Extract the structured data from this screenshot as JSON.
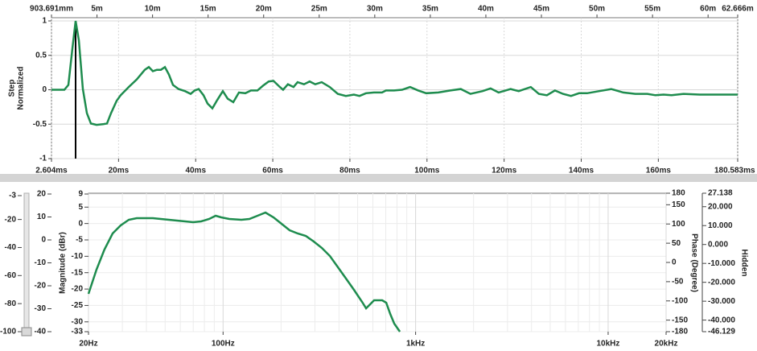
{
  "chart_data": [
    {
      "type": "line",
      "ylabel_lines": [
        "Step",
        "Normalized"
      ],
      "xlim": [
        2.604,
        180.583
      ],
      "xticks": [
        {
          "value": 2.604,
          "label": "2.604ms"
        },
        {
          "value": 20,
          "label": "20ms"
        },
        {
          "value": 40,
          "label": "40ms"
        },
        {
          "value": 60,
          "label": "60ms"
        },
        {
          "value": 80,
          "label": "80ms"
        },
        {
          "value": 100,
          "label": "100ms"
        },
        {
          "value": 120,
          "label": "120ms"
        },
        {
          "value": 140,
          "label": "140ms"
        },
        {
          "value": 160,
          "label": "160ms"
        },
        {
          "value": 180.583,
          "label": "180.583ms"
        }
      ],
      "x2lim": [
        0.903691,
        62.666
      ],
      "x2ticks": [
        {
          "value": 0.903691,
          "label": "903.691mm"
        },
        {
          "value": 5,
          "label": "5m"
        },
        {
          "value": 10,
          "label": "10m"
        },
        {
          "value": 15,
          "label": "15m"
        },
        {
          "value": 20,
          "label": "20m"
        },
        {
          "value": 25,
          "label": "25m"
        },
        {
          "value": 30,
          "label": "30m"
        },
        {
          "value": 35,
          "label": "35m"
        },
        {
          "value": 40,
          "label": "40m"
        },
        {
          "value": 45,
          "label": "45m"
        },
        {
          "value": 50,
          "label": "50m"
        },
        {
          "value": 55,
          "label": "55m"
        },
        {
          "value": 60,
          "label": "60m"
        },
        {
          "value": 62.666,
          "label": "62.666m"
        }
      ],
      "ylim": [
        -1,
        1
      ],
      "yticks": [
        1,
        0.5,
        0,
        -0.5,
        -1
      ],
      "grid": true,
      "color": "#1e8c4e",
      "impulse_x": 8.86,
      "impulse_color": "#000000",
      "x": [
        2.6,
        5.94,
        6.99,
        8.03,
        8.86,
        9.7,
        10.74,
        11.79,
        12.83,
        14.29,
        15.95,
        17,
        18.04,
        19.5,
        20.55,
        22.63,
        24.72,
        26.8,
        27.85,
        28.89,
        29.93,
        30.98,
        32.02,
        33.06,
        34.11,
        35.57,
        37.24,
        38.7,
        39.74,
        40.78,
        42.03,
        43.08,
        44.33,
        45.58,
        47.04,
        48.29,
        49.75,
        51.21,
        52.88,
        54.34,
        56.01,
        57.47,
        58.93,
        60.18,
        61.85,
        62.68,
        63.93,
        65.39,
        66.43,
        68.1,
        69.56,
        71.02,
        72.69,
        74.77,
        76.86,
        78.94,
        81.03,
        82.49,
        84.16,
        86.24,
        88.33,
        89.37,
        91.46,
        93.54,
        95.63,
        97.72,
        99.8,
        102.93,
        106.06,
        108.77,
        111.27,
        114.4,
        116.49,
        118.57,
        121.7,
        123.79,
        126.92,
        129,
        131.09,
        133.18,
        135.26,
        137.35,
        139.43,
        141.52,
        144.65,
        147.78,
        150.91,
        154.04,
        157.16,
        159.25,
        161.34,
        163.43,
        166.55,
        170.73,
        175.94,
        180.58
      ],
      "values": [
        0,
        0,
        0.07,
        0.6,
        1,
        0.72,
        0.01,
        -0.34,
        -0.49,
        -0.51,
        -0.5,
        -0.49,
        -0.34,
        -0.16,
        -0.08,
        0.04,
        0.15,
        0.29,
        0.33,
        0.27,
        0.29,
        0.29,
        0.33,
        0.22,
        0.07,
        0.01,
        -0.02,
        -0.06,
        -0.01,
        0.01,
        -0.08,
        -0.2,
        -0.27,
        -0.15,
        -0.02,
        -0.13,
        -0.18,
        -0.04,
        -0.05,
        -0.01,
        -0.01,
        0.06,
        0.12,
        0.13,
        0.04,
        0,
        0.08,
        0.04,
        0.11,
        0.08,
        0.12,
        0.08,
        0.11,
        0.04,
        -0.06,
        -0.09,
        -0.07,
        -0.09,
        -0.05,
        -0.04,
        -0.04,
        -0.01,
        -0.01,
        0,
        0.04,
        -0.01,
        -0.05,
        -0.04,
        -0.01,
        0.01,
        -0.06,
        -0.02,
        0.02,
        -0.04,
        0.01,
        -0.02,
        0.04,
        -0.06,
        -0.08,
        -0.01,
        -0.06,
        -0.09,
        -0.05,
        -0.05,
        -0.02,
        0.01,
        -0.04,
        -0.06,
        -0.06,
        -0.08,
        -0.07,
        -0.08,
        -0.06,
        -0.07,
        -0.07,
        -0.07
      ]
    },
    {
      "type": "line",
      "xscale": "log",
      "xlim": [
        20,
        20000
      ],
      "xticks": [
        {
          "value": 20,
          "label": "20Hz"
        },
        {
          "value": 100,
          "label": "100Hz"
        },
        {
          "value": 1000,
          "label": "1kHz"
        },
        {
          "value": 10000,
          "label": "10kHz"
        },
        {
          "value": 20000,
          "label": "20kHz"
        }
      ],
      "xminor": [
        30,
        40,
        50,
        60,
        70,
        80,
        90,
        200,
        300,
        400,
        500,
        600,
        700,
        800,
        900,
        2000,
        3000,
        4000,
        5000,
        6000,
        7000,
        8000,
        9000
      ],
      "ylabel": "Magnitude (dBr)",
      "ylim": [
        -33,
        9
      ],
      "yticks": [
        9,
        5,
        0,
        -5,
        -10,
        -15,
        -20,
        -25,
        -30,
        -33
      ],
      "slider_lim": [
        -100,
        -3
      ],
      "slider_ticks": [
        -3,
        -20,
        -40,
        -60,
        -80,
        -100
      ],
      "slider_value": -100,
      "dbr_lim": [
        -40,
        20
      ],
      "dbr_ticks": [
        20,
        10,
        0,
        -10,
        -20,
        -30,
        -40
      ],
      "y2label": "Phase (Degree)",
      "y2lim": [
        -180,
        180
      ],
      "y2ticks": [
        180,
        150,
        100,
        50,
        0,
        -50,
        -100,
        -150,
        -180
      ],
      "y3label": "Hidden",
      "y3color": "#2255cc",
      "y3lim": [
        -46.129,
        27.138
      ],
      "y3ticks": [
        27.138,
        {
          "value": 20,
          "label": "20.000"
        },
        {
          "value": 10,
          "label": "10.000"
        },
        {
          "value": 0,
          "label": "0.000"
        },
        {
          "value": -10,
          "label": "-10.000"
        },
        {
          "value": -20,
          "label": "-20.000"
        },
        {
          "value": -30,
          "label": "-30.000"
        },
        {
          "value": -40,
          "label": "-40.000"
        },
        -46.129
      ],
      "grid": true,
      "color": "#1e8c4e",
      "x": [
        20,
        22,
        24.2,
        26.7,
        29.4,
        32.4,
        35.6,
        43.2,
        47.5,
        52.3,
        63.5,
        69.9,
        76.9,
        84.7,
        91.5,
        97.8,
        107.7,
        124.5,
        137,
        150.9,
        166.1,
        182.9,
        201.3,
        221.7,
        244.1,
        268.7,
        295.9,
        325.8,
        358.8,
        395,
        434.8,
        478.7,
        527.1,
        553.1,
        580.3,
        608.8,
        670.4,
        703.4,
        738.1,
        774.5,
        828.4
      ],
      "values": [
        -21.46,
        -14.09,
        -7.95,
        -3.04,
        -0.58,
        1.14,
        1.63,
        1.63,
        1.39,
        1.14,
        0.65,
        0.4,
        0.65,
        1.39,
        2.37,
        1.88,
        1.39,
        1.14,
        1.39,
        2.37,
        3.35,
        1.88,
        -0.09,
        -2.05,
        -3.04,
        -3.77,
        -5.49,
        -7.46,
        -9.91,
        -13.35,
        -16.79,
        -20.23,
        -23.91,
        -25.88,
        -24.65,
        -23.42,
        -23.42,
        -24.16,
        -27.6,
        -30.55,
        -33
      ]
    }
  ]
}
